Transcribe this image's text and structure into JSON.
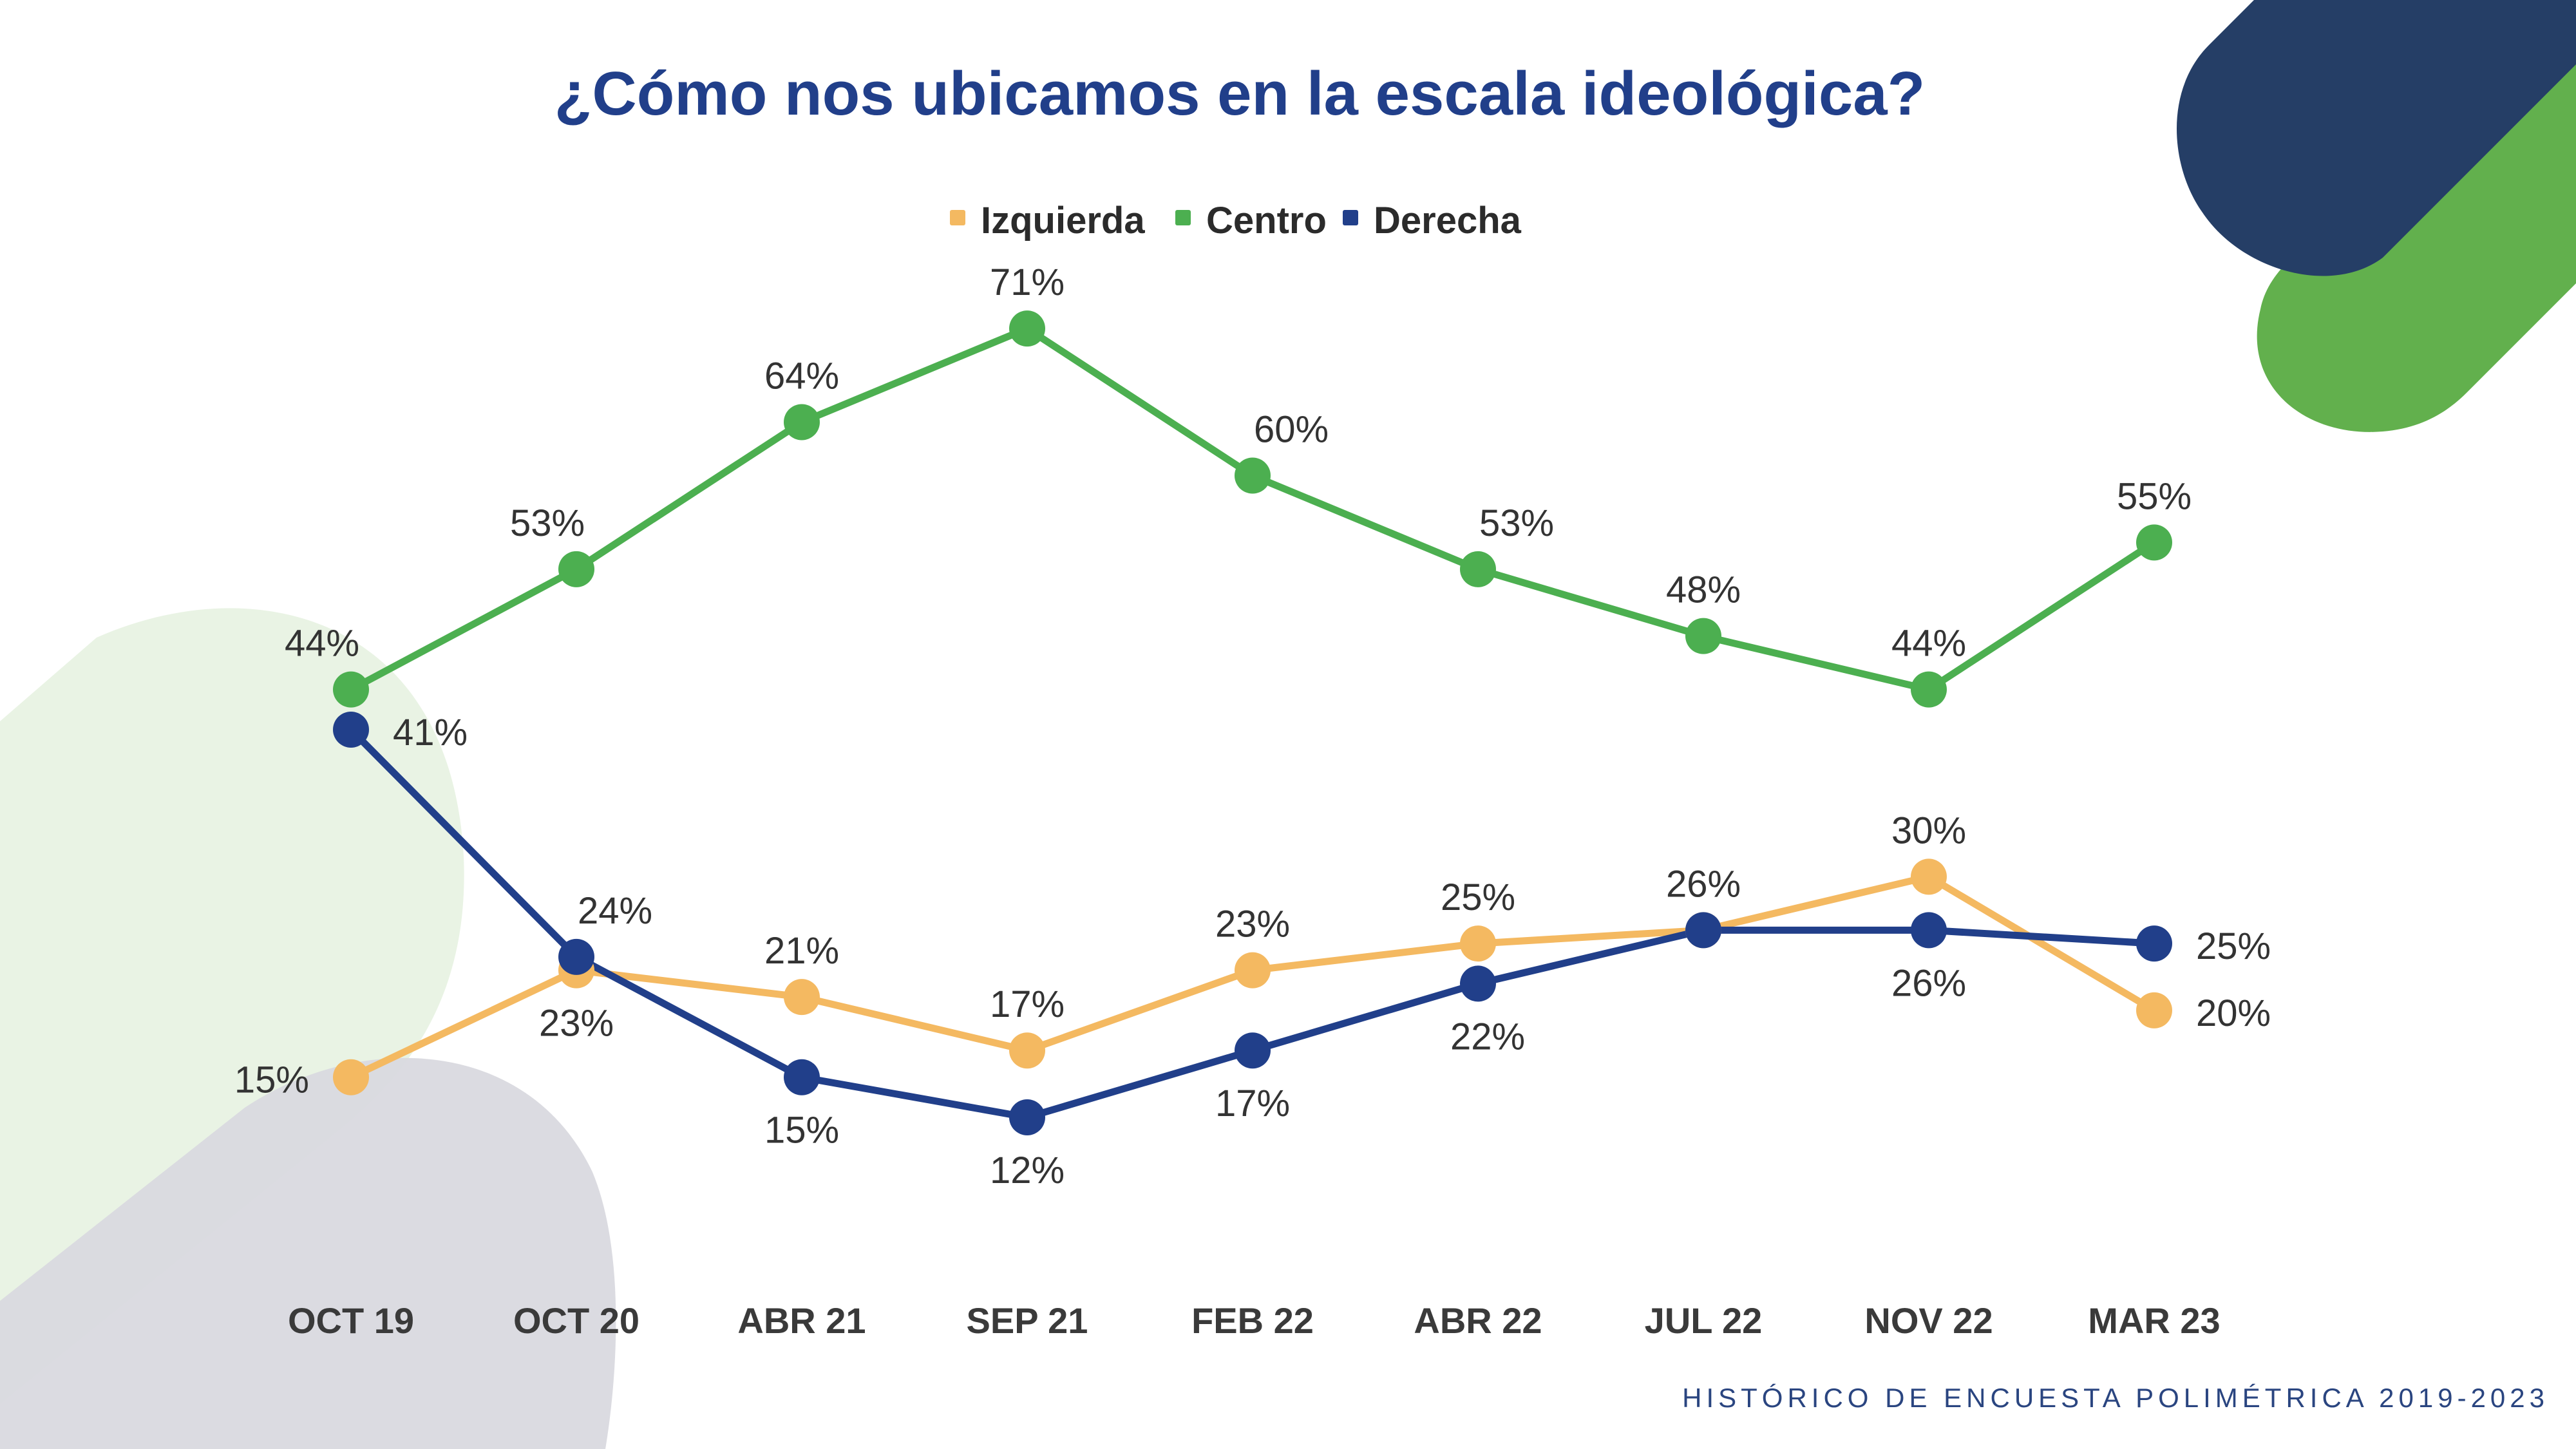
{
  "title": "¿Cómo nos ubicamos en la escala ideológica?",
  "footer": "HISTÓRICO DE ENCUESTA POLIMÉTRICA 2019-2023",
  "colors": {
    "title": "#213f8a",
    "decor_navy": "#253e66",
    "decor_green": "#62b04d",
    "decor_light_green": "#e9f3e4",
    "decor_gray": "#d9d9df"
  },
  "chart_data": {
    "type": "line",
    "title": "¿Cómo nos ubicamos en la escala ideológica?",
    "xlabel": "",
    "ylabel": "",
    "categories": [
      "OCT 19",
      "OCT 20",
      "ABR 21",
      "SEP 21",
      "FEB 22",
      "ABR 22",
      "JUL 22",
      "NOV 22",
      "MAR 23"
    ],
    "ylim": [
      0,
      75
    ],
    "grid": false,
    "legend_position": "top-center",
    "value_format": "{v}%",
    "series": [
      {
        "name": "Izquierda",
        "color": "#f4b961",
        "values": [
          15,
          23,
          21,
          17,
          23,
          25,
          26,
          30,
          20
        ],
        "label_positions": [
          "left",
          "below",
          "above",
          "above",
          "above",
          "above",
          "above",
          "above",
          "right"
        ]
      },
      {
        "name": "Centro",
        "color": "#4caf50",
        "values": [
          44,
          53,
          64,
          71,
          60,
          53,
          48,
          44,
          55
        ],
        "label_positions": [
          "above-left",
          "above-left",
          "above",
          "above",
          "above-right",
          "above-right",
          "above",
          "above",
          "above"
        ]
      },
      {
        "name": "Derecha",
        "color": "#213f8a",
        "values": [
          41,
          24,
          15,
          12,
          17,
          22,
          26,
          26,
          25
        ],
        "label_positions": [
          "right",
          "above-right",
          "below",
          "below",
          "below",
          "below-right",
          "none",
          "below",
          "right"
        ]
      }
    ]
  }
}
